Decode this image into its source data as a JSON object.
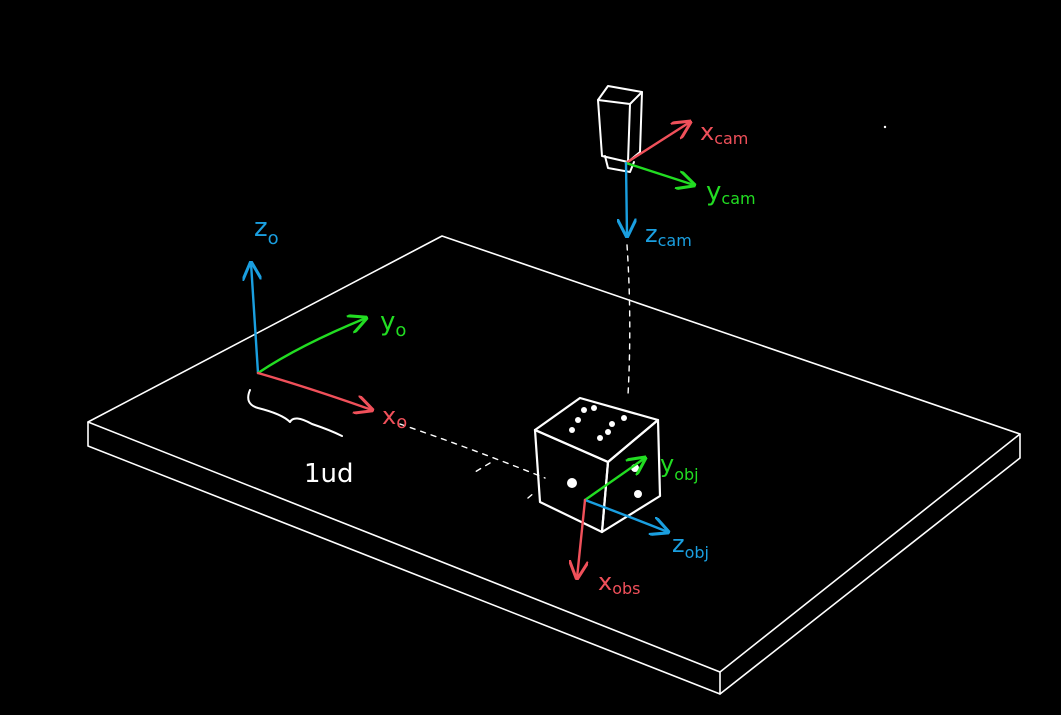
{
  "colors": {
    "background": "#000000",
    "outline": "#ffffff",
    "x_axis": "#f0505a",
    "y_axis": "#22dd22",
    "z_axis": "#1a9fe0"
  },
  "frames": {
    "origin": {
      "x": "x",
      "x_sub": "o",
      "y": "y",
      "y_sub": "o",
      "z": "z",
      "z_sub": "o"
    },
    "camera": {
      "x": "x",
      "x_sub": "cam",
      "y": "y",
      "y_sub": "cam",
      "z": "z",
      "z_sub": "cam"
    },
    "object": {
      "x": "x",
      "x_sub": "obs",
      "y": "y",
      "y_sub": "obj",
      "z": "z",
      "z_sub": "obj"
    }
  },
  "unit_label": "1ud",
  "icons": [
    "camera-icon",
    "die-icon"
  ]
}
